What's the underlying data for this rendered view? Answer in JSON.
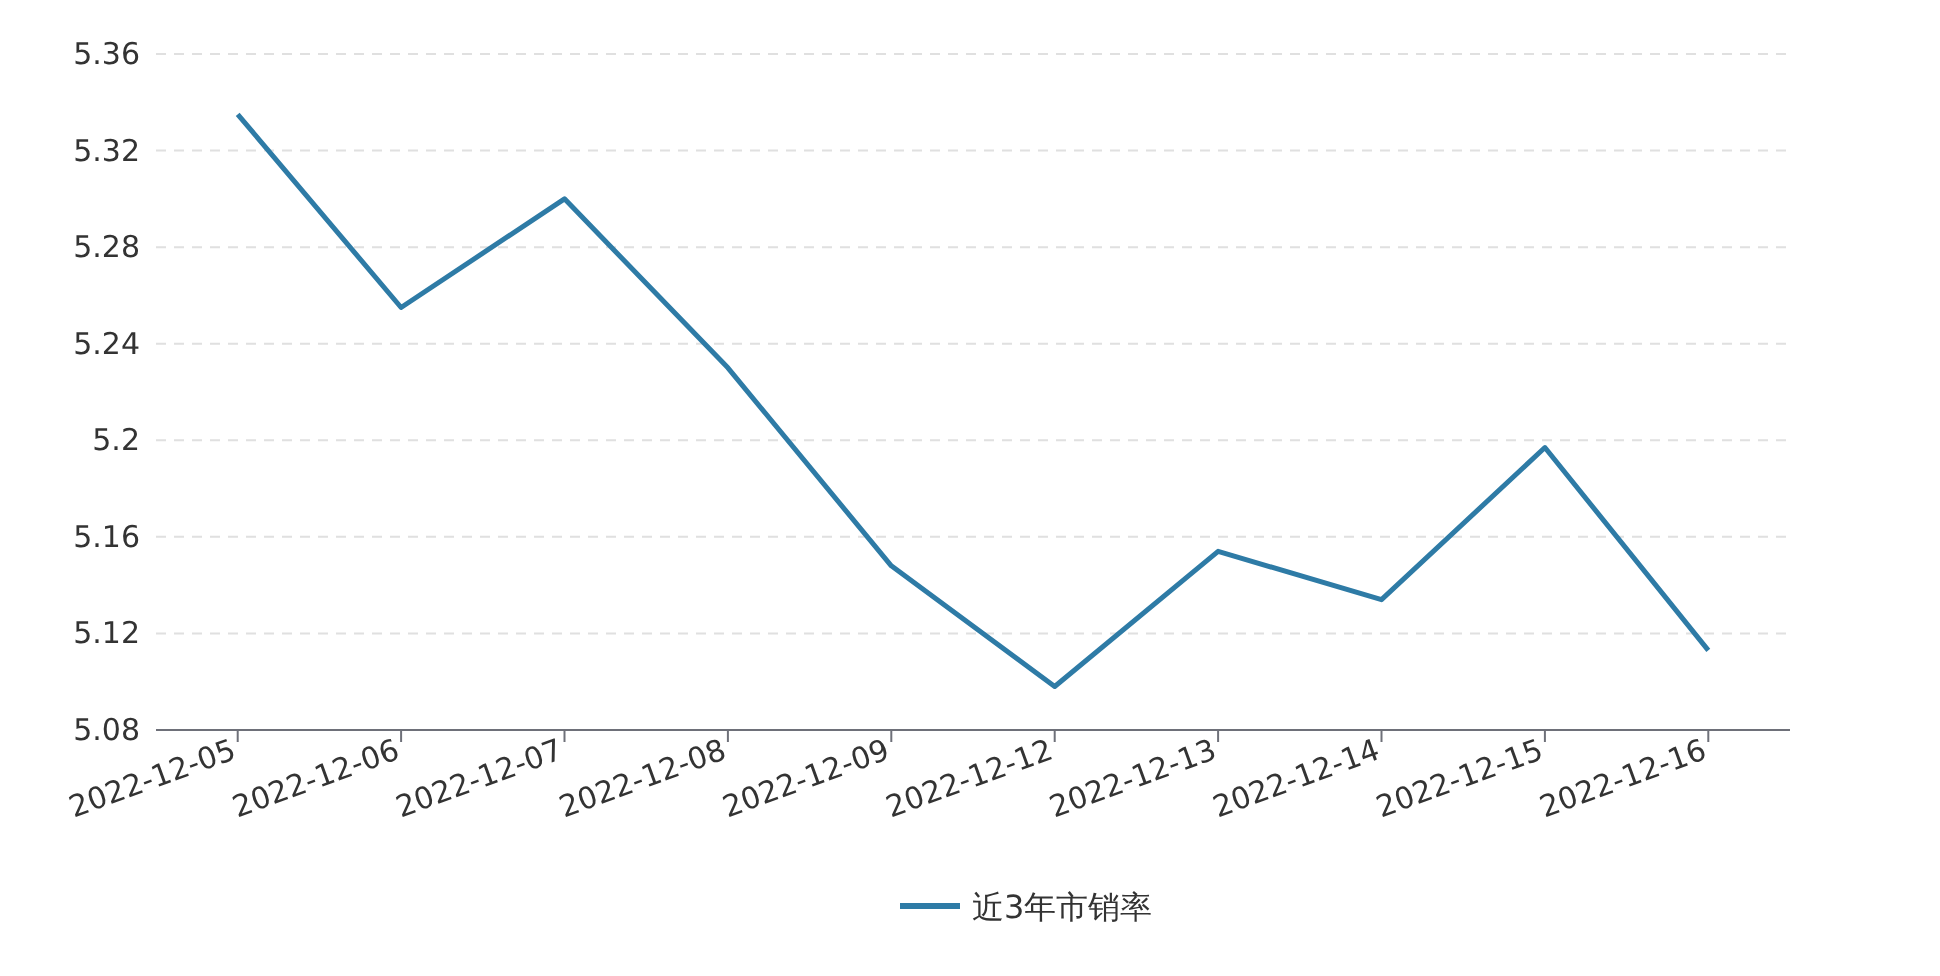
{
  "chart_data": {
    "type": "line",
    "categories": [
      "2022-12-05",
      "2022-12-06",
      "2022-12-07",
      "2022-12-08",
      "2022-12-09",
      "2022-12-12",
      "2022-12-13",
      "2022-12-14",
      "2022-12-15",
      "2022-12-16"
    ],
    "series": [
      {
        "name": "近3年市销率",
        "color": "#2e7ba6",
        "values": [
          5.335,
          5.255,
          5.3,
          5.23,
          5.148,
          5.098,
          5.154,
          5.134,
          5.197,
          5.113
        ]
      }
    ],
    "ylim": [
      5.08,
      5.36
    ],
    "yticks": [
      5.08,
      5.12,
      5.16,
      5.2,
      5.24,
      5.28,
      5.32,
      5.36
    ],
    "grid": "y",
    "legend": "bottom",
    "marker": "none",
    "line_style": "solid"
  }
}
